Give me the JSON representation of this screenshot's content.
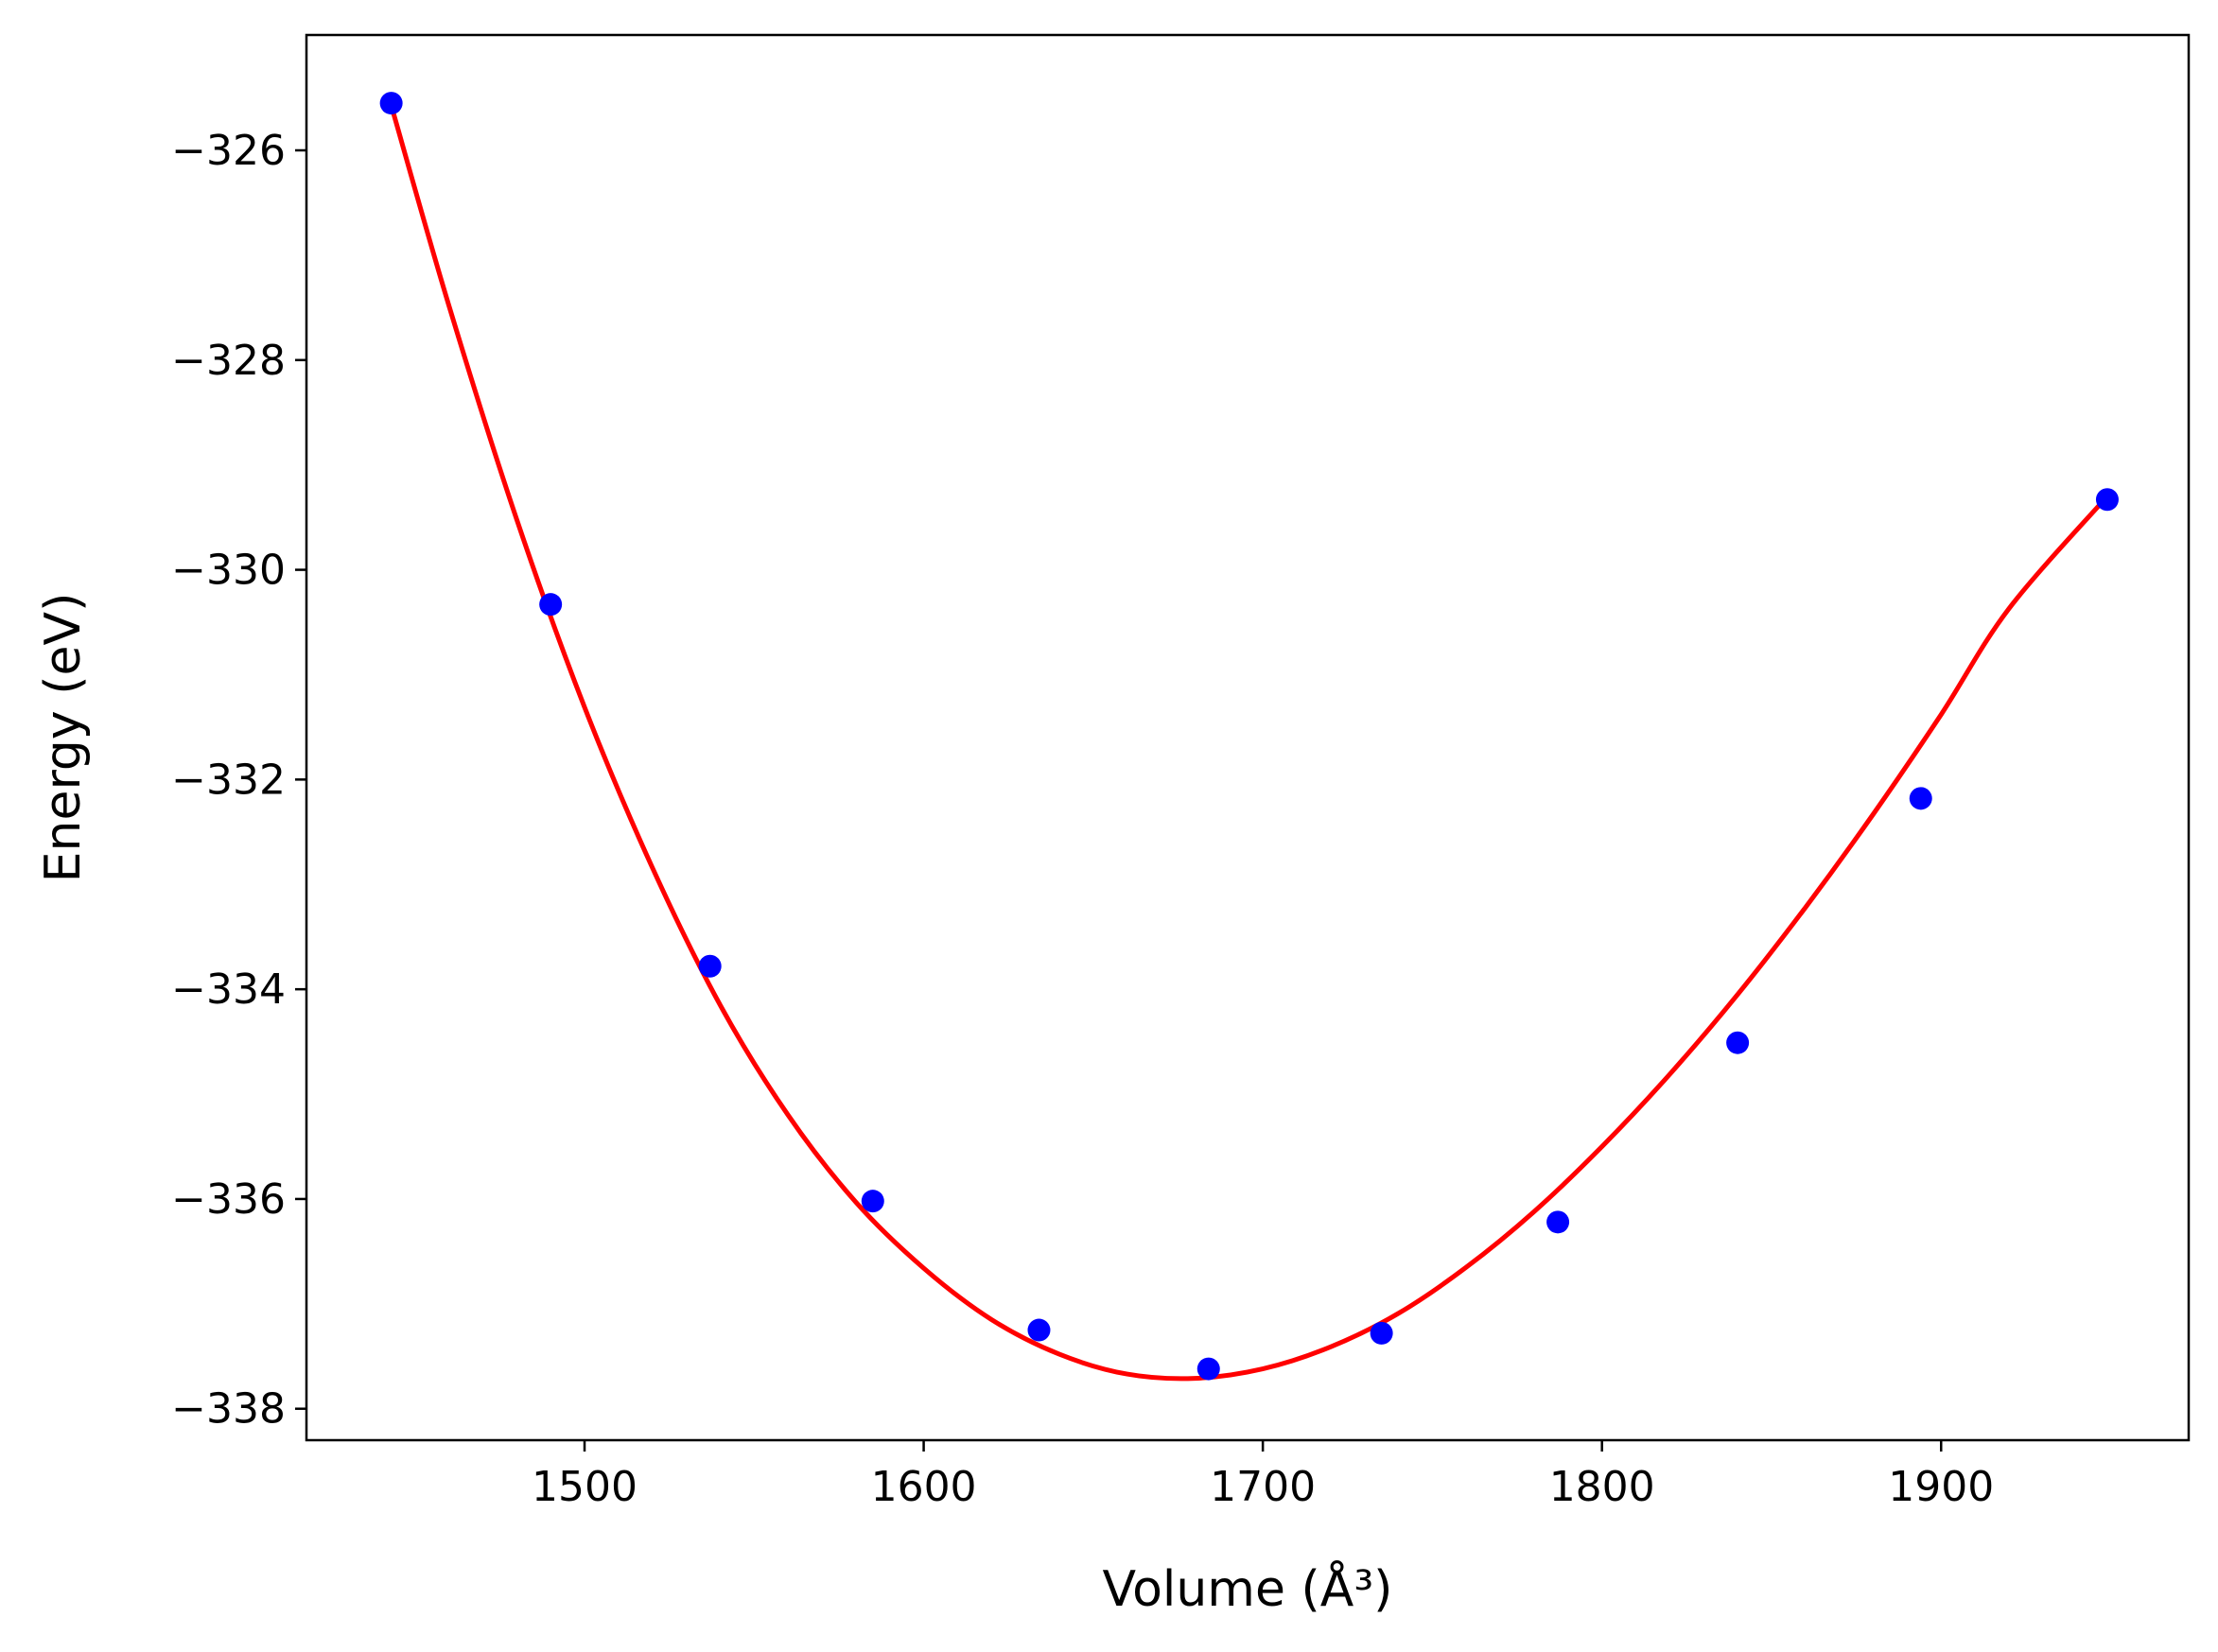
{
  "chart_data": {
    "type": "scatter",
    "title": "",
    "xlabel": "Volume (Å³)",
    "ylabel": "Energy (eV)",
    "xlim": [
      1418,
      1973
    ],
    "ylim": [
      -338.3,
      -324.9
    ],
    "xticks": [
      1500,
      1600,
      1700,
      1800,
      1900
    ],
    "yticks": [
      -326,
      -328,
      -330,
      -332,
      -334,
      -336,
      -338
    ],
    "grid": false,
    "legend": "none",
    "series": [
      {
        "kind": "points",
        "color": "#0000ff",
        "x": [
          1443,
          1490,
          1537,
          1585,
          1634,
          1684,
          1735,
          1787,
          1840,
          1894,
          1949
        ],
        "y": [
          -325.55,
          -330.33,
          -333.78,
          -336.02,
          -337.25,
          -337.62,
          -337.28,
          -336.22,
          -334.51,
          -332.18,
          -329.33
        ]
      },
      {
        "kind": "fit-curve",
        "color": "#ff0000",
        "x": [
          1443,
          1460,
          1480,
          1500,
          1520,
          1540,
          1560,
          1580,
          1600,
          1620,
          1640,
          1660,
          1680,
          1700,
          1720,
          1740,
          1760,
          1780,
          1800,
          1820,
          1840,
          1860,
          1880,
          1900,
          1920,
          1949
        ],
        "y": [
          -325.57,
          -327.48,
          -329.52,
          -331.31,
          -332.84,
          -334.15,
          -335.2,
          -336.03,
          -336.66,
          -337.15,
          -337.48,
          -337.67,
          -337.71,
          -337.62,
          -337.41,
          -337.09,
          -336.65,
          -336.12,
          -335.5,
          -334.81,
          -334.05,
          -333.22,
          -332.33,
          -331.38,
          -330.37,
          -329.3
        ]
      }
    ]
  }
}
